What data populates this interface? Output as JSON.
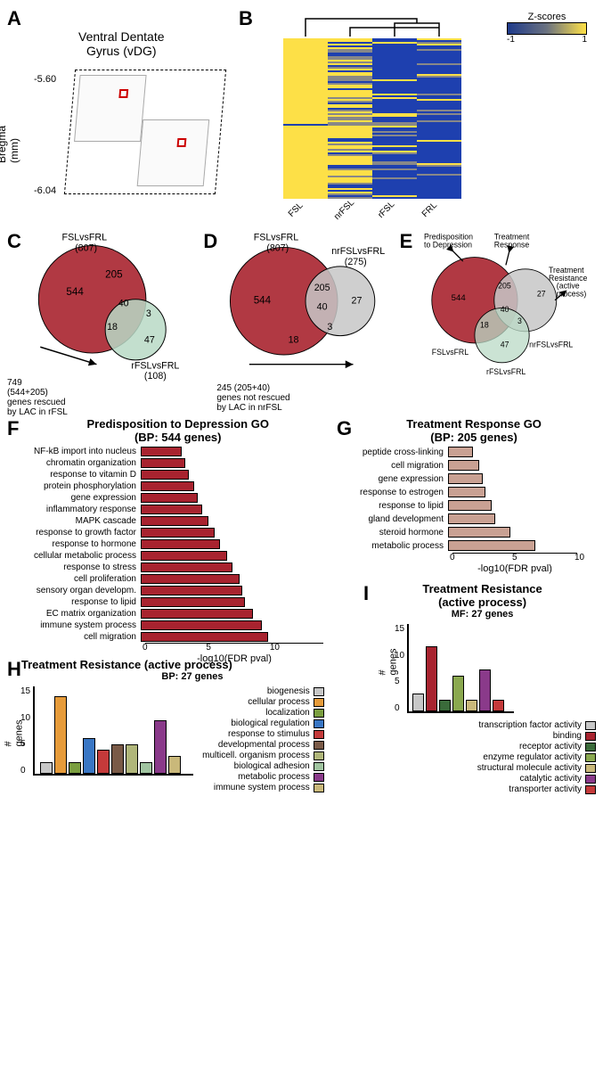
{
  "panelA": {
    "label": "A",
    "title": "Ventral Dentate\nGyrus (vDG)",
    "bregma_label": "Bregma\n(mm)",
    "bregma_top": "-5.60",
    "bregma_bottom": "-6.04"
  },
  "panelB": {
    "label": "B",
    "zscore_label": "Z-scores",
    "zscore_min": "-1",
    "zscore_max": "1",
    "columns": [
      "FSL",
      "nrFSL",
      "rFSL",
      "FRL"
    ],
    "colors": {
      "high": "#fde047",
      "mid": "#888888",
      "low": "#1e40af"
    },
    "dendro_structure": [
      [
        0
      ],
      [
        1,
        2,
        3
      ]
    ]
  },
  "panelC": {
    "label": "C",
    "set1_label": "FSLvsFRL\n(807)",
    "set2_label": "rFSLvsFRL\n(108)",
    "regions": {
      "a_only": "544",
      "a_upper": "205",
      "ab": "40",
      "ab_lower": "18",
      "b_only": "47",
      "b_extra": "3"
    },
    "note": "749\n(544+205)\ngenes rescued\nby LAC in rFSL",
    "colors": {
      "a": "#a8232f",
      "b": "#b9d9c5"
    }
  },
  "panelD": {
    "label": "D",
    "set1_label": "FSLvsFRL\n(807)",
    "set2_label": "nrFSLvsFRL\n(275)",
    "regions": {
      "a_only": "544",
      "ab_upper": "205",
      "ab_mid": "40",
      "a_lower": "18",
      "b_extra": "3",
      "b_only": "27"
    },
    "note": "245 (205+40)\ngenes not rescued\nby LAC in nrFSL",
    "colors": {
      "a": "#a8232f",
      "b": "#c7c7c7"
    }
  },
  "panelE": {
    "label": "E",
    "labels": {
      "pred": "Predisposition\nto Depression",
      "tr": "Treatment\nResponse",
      "tres": "Treatment\nResistance\n(active\nprocess)",
      "s1": "FSLvsFRL",
      "s2": "nrFSLvsFRL",
      "s3": "rFSLvsFRL"
    },
    "regions": {
      "a": "544",
      "ab": "205",
      "b": "27",
      "abc": "40",
      "ac": "18",
      "bc": "3",
      "c": "47"
    },
    "colors": {
      "a": "#a8232f",
      "b": "#c7c7c7",
      "c": "#b9d9c5"
    }
  },
  "panelF": {
    "label": "F",
    "title": "Predisposition to Depression GO\n(BP: 544 genes)",
    "xlabel": "-log10(FDR pval)",
    "xmax": 14,
    "xticks": [
      0,
      5,
      10
    ],
    "bar_color": "#a8232f",
    "bars": [
      {
        "label": "NF-kB import into nucleus",
        "value": 3.2
      },
      {
        "label": "chromatin organization",
        "value": 3.5
      },
      {
        "label": "response to vitamin D",
        "value": 3.8
      },
      {
        "label": "protein phosphorylation",
        "value": 4.2
      },
      {
        "label": "gene expression",
        "value": 4.5
      },
      {
        "label": "inflammatory response",
        "value": 4.8
      },
      {
        "label": "MAPK cascade",
        "value": 5.3
      },
      {
        "label": "response to growth factor",
        "value": 5.8
      },
      {
        "label": "response to hormone",
        "value": 6.2
      },
      {
        "label": "cellular metabolic process",
        "value": 6.8
      },
      {
        "label": "response to stress",
        "value": 7.2
      },
      {
        "label": "cell proliferation",
        "value": 7.8
      },
      {
        "label": "sensory organ developm.",
        "value": 8.0
      },
      {
        "label": "response to lipid",
        "value": 8.2
      },
      {
        "label": "EC matrix organization",
        "value": 8.8
      },
      {
        "label": "immune system process",
        "value": 9.5
      },
      {
        "label": "cell migration",
        "value": 10.0
      }
    ],
    "broken_bar": 13.5
  },
  "panelG": {
    "label": "G",
    "title": "Treatment Response GO\n(BP: 205 genes)",
    "xlabel": "-log10(FDR pval)",
    "xmax": 10,
    "xticks": [
      0,
      5,
      10
    ],
    "bar_color": "#c9a193",
    "bars": [
      {
        "label": "peptide cross-linking",
        "value": 2.0
      },
      {
        "label": "cell migration",
        "value": 2.5
      },
      {
        "label": "gene expression",
        "value": 2.8
      },
      {
        "label": "response to estrogen",
        "value": 3.0
      },
      {
        "label": "response to lipid",
        "value": 3.5
      },
      {
        "label": "gland development",
        "value": 3.8
      },
      {
        "label": "steroid hormone",
        "value": 5.0
      },
      {
        "label": "metabolic process",
        "value": 7.0
      }
    ]
  },
  "panelH": {
    "label": "H",
    "title": "Treatment Resistance (active process)",
    "subtitle": "BP: 27 genes",
    "ylabel": "# genes",
    "ymax": 15,
    "yticks": [
      0,
      5,
      10,
      15
    ],
    "bars": [
      {
        "label": "biogenesis",
        "value": 2,
        "color": "#c7c7c7"
      },
      {
        "label": "cellular process",
        "value": 13,
        "color": "#e69b3a"
      },
      {
        "label": "localization",
        "value": 2,
        "color": "#7a9e3f"
      },
      {
        "label": "biological regulation",
        "value": 6,
        "color": "#3976c4"
      },
      {
        "label": "response to stimulus",
        "value": 4,
        "color": "#c43a3a"
      },
      {
        "label": "developmental process",
        "value": 5,
        "color": "#7a5a47"
      },
      {
        "label": "multicell. organism process",
        "value": 5,
        "color": "#b0b67a"
      },
      {
        "label": "biological adhesion",
        "value": 2,
        "color": "#a0c4a0"
      },
      {
        "label": "metabolic process",
        "value": 9,
        "color": "#8a3a8a"
      },
      {
        "label": "immune system process",
        "value": 3,
        "color": "#c9b87a"
      }
    ]
  },
  "panelI": {
    "label": "I",
    "title": "Treatment Resistance\n(active process)",
    "subtitle": "MF: 27 genes",
    "ylabel": "# genes",
    "ymax": 15,
    "yticks": [
      0,
      5,
      10,
      15
    ],
    "bars": [
      {
        "label": "transcription factor activity",
        "value": 3,
        "color": "#c7c7c7"
      },
      {
        "label": "binding",
        "value": 11,
        "color": "#a8232f"
      },
      {
        "label": "receptor activity",
        "value": 2,
        "color": "#3a6b3a"
      },
      {
        "label": "enzyme regulator activity",
        "value": 6,
        "color": "#8aa84f"
      },
      {
        "label": "structural molecule activity",
        "value": 2,
        "color": "#c9b87a"
      },
      {
        "label": "catalytic activity",
        "value": 7,
        "color": "#8a3a8a"
      },
      {
        "label": "transporter activity",
        "value": 2,
        "color": "#c43a3a"
      }
    ]
  }
}
